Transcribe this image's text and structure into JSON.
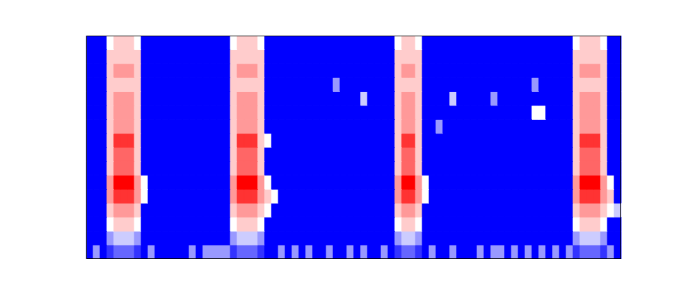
{
  "chart_data": {
    "type": "spectrogram",
    "tick_labels": false,
    "zlim": [
      0,
      1
    ],
    "cells": [
      [
        0,
        0.3,
        0,
        0.1,
        0.2,
        0.2,
        0.2,
        0.1,
        0,
        0.3,
        0,
        0,
        0,
        0,
        0,
        0.3,
        0,
        0.3,
        0.3,
        0.3,
        0.3,
        0.1,
        0.2,
        0.2,
        0.2,
        0.1,
        0,
        0,
        0.3,
        0,
        0.3,
        0,
        0.3,
        0,
        0,
        0.3,
        0,
        0,
        0.3,
        0,
        0.3,
        0,
        0,
        0.3,
        0,
        0.1,
        0.2,
        0.2,
        0.1,
        0,
        0.3,
        0,
        0,
        0.3,
        0,
        0,
        0,
        0.3,
        0,
        0.3,
        0.3,
        0,
        0.3,
        0,
        0.3,
        0,
        0.3,
        0,
        0.3,
        0,
        0.3,
        0.1,
        0.2,
        0.2,
        0.2,
        0.1,
        0.3,
        0
      ],
      [
        0,
        0,
        0,
        0.3,
        0.4,
        0.4,
        0.4,
        0.3,
        0,
        0,
        0,
        0,
        0,
        0,
        0,
        0,
        0,
        0,
        0,
        0,
        0,
        0.3,
        0.4,
        0.4,
        0.4,
        0.3,
        0,
        0,
        0,
        0,
        0,
        0,
        0,
        0,
        0,
        0,
        0,
        0,
        0,
        0,
        0,
        0,
        0,
        0,
        0,
        0.3,
        0.4,
        0.4,
        0.3,
        0,
        0,
        0,
        0,
        0,
        0,
        0,
        0,
        0,
        0,
        0,
        0,
        0,
        0,
        0,
        0,
        0,
        0,
        0,
        0,
        0,
        0,
        0.3,
        0.4,
        0.4,
        0.4,
        0.3,
        0,
        0
      ],
      [
        0,
        0,
        0,
        0.5,
        0.6,
        0.6,
        0.6,
        0.5,
        0,
        0,
        0,
        0,
        0,
        0,
        0,
        0,
        0,
        0,
        0,
        0,
        0,
        0.5,
        0.6,
        0.6,
        0.6,
        0.5,
        0,
        0,
        0,
        0,
        0,
        0,
        0,
        0,
        0,
        0,
        0,
        0,
        0,
        0,
        0,
        0,
        0,
        0,
        0,
        0.5,
        0.6,
        0.6,
        0.5,
        0,
        0,
        0,
        0,
        0,
        0,
        0,
        0,
        0,
        0,
        0,
        0,
        0,
        0,
        0,
        0,
        0,
        0,
        0,
        0,
        0,
        0,
        0.5,
        0.6,
        0.6,
        0.6,
        0.5,
        0,
        0
      ],
      [
        0,
        0,
        0,
        0.6,
        0.7,
        0.7,
        0.7,
        0.6,
        0,
        0,
        0,
        0,
        0,
        0,
        0,
        0,
        0,
        0,
        0,
        0,
        0,
        0.6,
        0.7,
        0.7,
        0.7,
        0.6,
        0.5,
        0,
        0,
        0,
        0,
        0,
        0,
        0,
        0,
        0,
        0,
        0,
        0,
        0,
        0,
        0,
        0,
        0,
        0,
        0.6,
        0.7,
        0.7,
        0.6,
        0,
        0,
        0,
        0,
        0,
        0,
        0,
        0,
        0,
        0,
        0,
        0,
        0,
        0,
        0,
        0,
        0,
        0,
        0,
        0,
        0,
        0,
        0.6,
        0.7,
        0.7,
        0.7,
        0.6,
        0.5,
        0.4
      ],
      [
        0,
        0,
        0,
        0.7,
        0.9,
        0.9,
        0.9,
        0.7,
        0.5,
        0,
        0,
        0,
        0,
        0,
        0,
        0,
        0,
        0,
        0,
        0,
        0,
        0.7,
        0.9,
        0.9,
        0.9,
        0.7,
        0.6,
        0.5,
        0,
        0,
        0,
        0,
        0,
        0,
        0,
        0,
        0,
        0,
        0,
        0,
        0,
        0,
        0,
        0,
        0,
        0.7,
        0.9,
        0.9,
        0.7,
        0.5,
        0,
        0,
        0,
        0,
        0,
        0,
        0,
        0,
        0,
        0,
        0,
        0,
        0,
        0,
        0,
        0,
        0,
        0,
        0,
        0,
        0,
        0.7,
        0.9,
        0.9,
        0.9,
        0.7,
        0.6,
        0
      ],
      [
        0,
        0,
        0,
        0.7,
        1,
        1,
        1,
        0.7,
        0.5,
        0,
        0,
        0,
        0,
        0,
        0,
        0,
        0,
        0,
        0,
        0,
        0,
        0.7,
        1,
        1,
        1,
        0.7,
        0.5,
        0,
        0,
        0,
        0,
        0,
        0,
        0,
        0,
        0,
        0,
        0,
        0,
        0,
        0,
        0,
        0,
        0,
        0,
        0.7,
        1,
        1,
        0.7,
        0.5,
        0,
        0,
        0,
        0,
        0,
        0,
        0,
        0,
        0,
        0,
        0,
        0,
        0,
        0,
        0,
        0,
        0,
        0,
        0,
        0,
        0,
        0.7,
        1,
        1,
        1,
        0.7,
        0.5,
        0
      ],
      [
        0,
        0,
        0,
        0.6,
        0.8,
        0.8,
        0.8,
        0.6,
        0,
        0,
        0,
        0,
        0,
        0,
        0,
        0,
        0,
        0,
        0,
        0,
        0,
        0.6,
        0.8,
        0.8,
        0.8,
        0.6,
        0,
        0,
        0,
        0,
        0,
        0,
        0,
        0,
        0,
        0,
        0,
        0,
        0,
        0,
        0,
        0,
        0,
        0,
        0,
        0.6,
        0.8,
        0.8,
        0.6,
        0,
        0,
        0,
        0,
        0,
        0,
        0,
        0,
        0,
        0,
        0,
        0,
        0,
        0,
        0,
        0,
        0,
        0,
        0,
        0,
        0,
        0,
        0.6,
        0.8,
        0.8,
        0.8,
        0.6,
        0,
        0
      ],
      [
        0,
        0,
        0,
        0.6,
        0.8,
        0.8,
        0.8,
        0.6,
        0,
        0,
        0,
        0,
        0,
        0,
        0,
        0,
        0,
        0,
        0,
        0,
        0,
        0.6,
        0.8,
        0.8,
        0.8,
        0.6,
        0,
        0,
        0,
        0,
        0,
        0,
        0,
        0,
        0,
        0,
        0,
        0,
        0,
        0,
        0,
        0,
        0,
        0,
        0,
        0.6,
        0.8,
        0.8,
        0.6,
        0,
        0,
        0,
        0,
        0,
        0,
        0,
        0,
        0,
        0,
        0,
        0,
        0,
        0,
        0,
        0,
        0,
        0,
        0,
        0,
        0,
        0,
        0.6,
        0.8,
        0.8,
        0.8,
        0.6,
        0,
        0
      ],
      [
        0,
        0,
        0,
        0.6,
        0.9,
        0.9,
        0.9,
        0.6,
        0,
        0,
        0,
        0,
        0,
        0,
        0,
        0,
        0,
        0,
        0,
        0,
        0,
        0.6,
        0.9,
        0.9,
        0.9,
        0.6,
        0.5,
        0,
        0,
        0,
        0,
        0,
        0,
        0,
        0,
        0,
        0,
        0,
        0,
        0,
        0,
        0,
        0,
        0,
        0,
        0.6,
        0.9,
        0.9,
        0.6,
        0,
        0,
        0,
        0,
        0,
        0,
        0,
        0,
        0,
        0,
        0,
        0,
        0,
        0,
        0,
        0,
        0,
        0,
        0,
        0,
        0,
        0,
        0.6,
        0.9,
        0.9,
        0.9,
        0.6,
        0,
        0
      ],
      [
        0,
        0,
        0,
        0.6,
        0.7,
        0.7,
        0.7,
        0.6,
        0,
        0,
        0,
        0,
        0,
        0,
        0,
        0,
        0,
        0,
        0,
        0,
        0,
        0.6,
        0.7,
        0.7,
        0.7,
        0.6,
        0,
        0,
        0,
        0,
        0,
        0,
        0,
        0,
        0,
        0,
        0,
        0,
        0,
        0,
        0,
        0,
        0,
        0,
        0,
        0.6,
        0.7,
        0.7,
        0.6,
        0,
        0,
        0.3,
        0,
        0,
        0,
        0,
        0,
        0,
        0,
        0,
        0,
        0,
        0,
        0,
        0,
        0,
        0,
        0,
        0,
        0,
        0,
        0.6,
        0.7,
        0.7,
        0.7,
        0.6,
        0,
        0
      ],
      [
        0,
        0,
        0,
        0.6,
        0.7,
        0.7,
        0.7,
        0.6,
        0,
        0,
        0,
        0,
        0,
        0,
        0,
        0,
        0,
        0,
        0,
        0,
        0,
        0.6,
        0.7,
        0.7,
        0.7,
        0.6,
        0,
        0,
        0,
        0,
        0,
        0,
        0,
        0,
        0,
        0,
        0,
        0,
        0,
        0,
        0,
        0,
        0,
        0,
        0,
        0.6,
        0.7,
        0.7,
        0.6,
        0,
        0,
        0,
        0,
        0,
        0,
        0,
        0,
        0,
        0,
        0,
        0,
        0,
        0,
        0,
        0,
        0.5,
        0.5,
        0,
        0,
        0,
        0,
        0.6,
        0.7,
        0.7,
        0.7,
        0.6,
        0,
        0
      ],
      [
        0,
        0,
        0,
        0.6,
        0.7,
        0.7,
        0.7,
        0.6,
        0,
        0,
        0,
        0,
        0,
        0,
        0,
        0,
        0,
        0,
        0,
        0,
        0,
        0.6,
        0.7,
        0.7,
        0.7,
        0.6,
        0,
        0,
        0,
        0,
        0,
        0,
        0,
        0,
        0,
        0,
        0,
        0,
        0,
        0,
        0.4,
        0,
        0,
        0,
        0,
        0.6,
        0.7,
        0.7,
        0.6,
        0,
        0,
        0,
        0,
        0.4,
        0,
        0,
        0,
        0,
        0,
        0.3,
        0,
        0,
        0,
        0,
        0,
        0,
        0,
        0,
        0,
        0,
        0,
        0.6,
        0.7,
        0.7,
        0.7,
        0.6,
        0,
        0
      ],
      [
        0,
        0,
        0,
        0.6,
        0.6,
        0.6,
        0.6,
        0.6,
        0,
        0,
        0,
        0,
        0,
        0,
        0,
        0,
        0,
        0,
        0,
        0,
        0,
        0.6,
        0.6,
        0.6,
        0.6,
        0.6,
        0,
        0,
        0,
        0,
        0,
        0,
        0,
        0,
        0,
        0,
        0.3,
        0,
        0,
        0,
        0,
        0,
        0,
        0,
        0,
        0.6,
        0.6,
        0.6,
        0.6,
        0,
        0,
        0,
        0,
        0,
        0,
        0,
        0,
        0,
        0,
        0,
        0,
        0,
        0,
        0,
        0,
        0.3,
        0,
        0,
        0,
        0,
        0,
        0.6,
        0.6,
        0.6,
        0.6,
        0.6,
        0,
        0
      ],
      [
        0,
        0,
        0,
        0.6,
        0.7,
        0.7,
        0.7,
        0.6,
        0,
        0,
        0,
        0,
        0,
        0,
        0,
        0,
        0,
        0,
        0,
        0,
        0,
        0.6,
        0.7,
        0.7,
        0.7,
        0.6,
        0,
        0,
        0,
        0,
        0,
        0,
        0,
        0,
        0,
        0,
        0,
        0,
        0,
        0,
        0,
        0,
        0,
        0,
        0,
        0.6,
        0.7,
        0.7,
        0.6,
        0,
        0,
        0,
        0,
        0,
        0,
        0,
        0,
        0,
        0,
        0,
        0,
        0,
        0,
        0,
        0,
        0,
        0,
        0,
        0,
        0,
        0,
        0.6,
        0.7,
        0.7,
        0.7,
        0.6,
        0,
        0
      ],
      [
        0,
        0,
        0,
        0.6,
        0.6,
        0.6,
        0.6,
        0.6,
        0,
        0,
        0,
        0,
        0,
        0,
        0,
        0,
        0,
        0,
        0,
        0,
        0,
        0.6,
        0.6,
        0.6,
        0.6,
        0.6,
        0,
        0,
        0,
        0,
        0,
        0,
        0,
        0,
        0,
        0,
        0,
        0,
        0,
        0,
        0,
        0,
        0,
        0,
        0,
        0.6,
        0.6,
        0.6,
        0.6,
        0,
        0,
        0,
        0,
        0,
        0,
        0,
        0,
        0,
        0,
        0,
        0,
        0,
        0,
        0,
        0,
        0,
        0,
        0,
        0,
        0,
        0,
        0.6,
        0.6,
        0.6,
        0.6,
        0.6,
        0,
        0
      ],
      [
        0,
        0,
        0,
        0.5,
        0.6,
        0.6,
        0.6,
        0.5,
        0,
        0,
        0,
        0,
        0,
        0,
        0,
        0,
        0,
        0,
        0,
        0,
        0,
        0.5,
        0.6,
        0.6,
        0.6,
        0.5,
        0,
        0,
        0,
        0,
        0,
        0,
        0,
        0,
        0,
        0,
        0,
        0,
        0,
        0,
        0,
        0,
        0,
        0,
        0,
        0.5,
        0.6,
        0.6,
        0.5,
        0,
        0,
        0,
        0,
        0,
        0,
        0,
        0,
        0,
        0,
        0,
        0,
        0,
        0,
        0,
        0,
        0,
        0,
        0,
        0,
        0,
        0,
        0.5,
        0.6,
        0.6,
        0.6,
        0.5,
        0,
        0
      ]
    ]
  }
}
